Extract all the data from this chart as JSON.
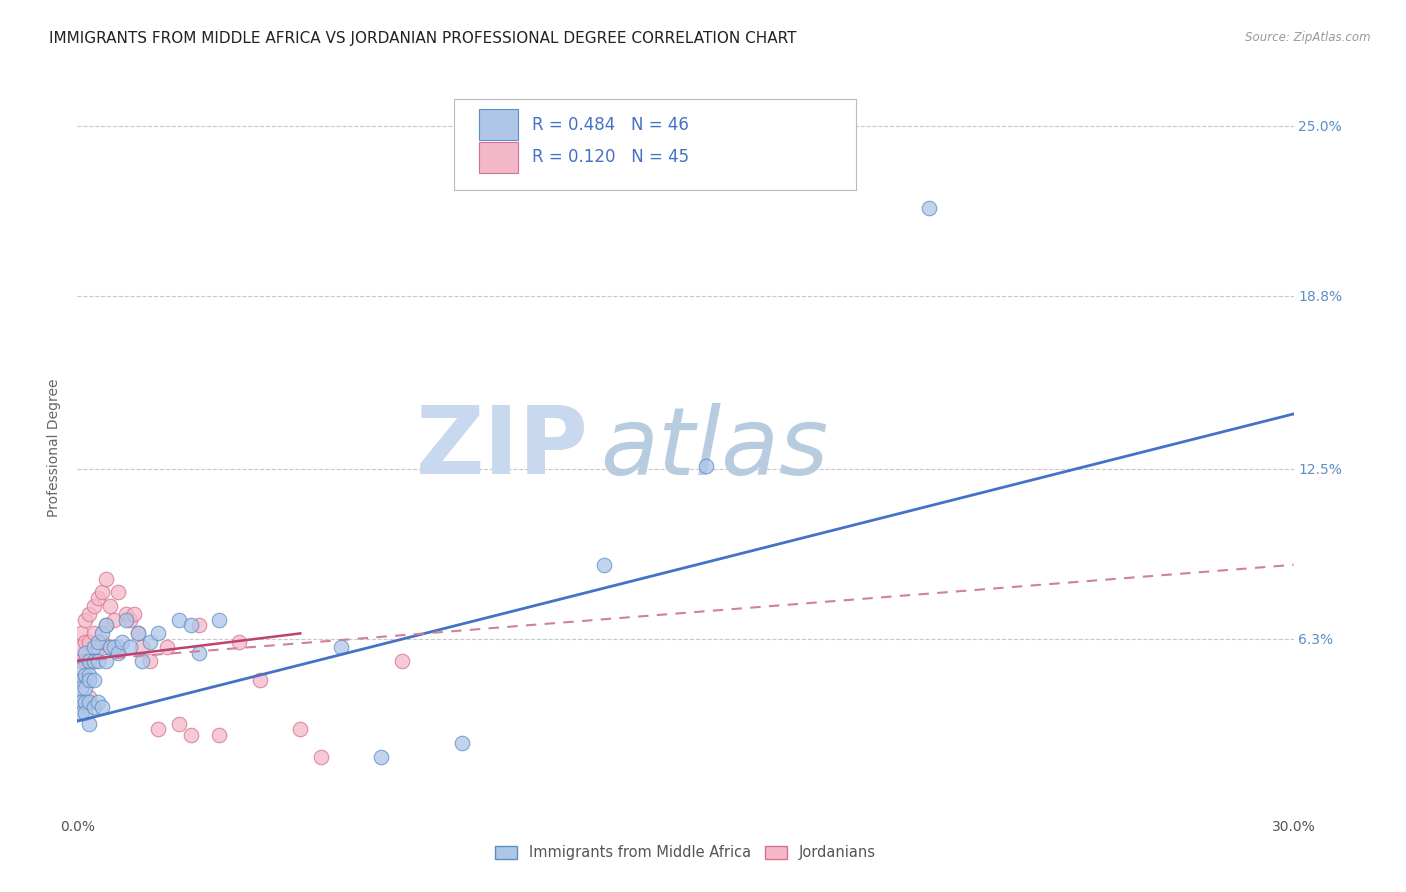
{
  "title": "IMMIGRANTS FROM MIDDLE AFRICA VS JORDANIAN PROFESSIONAL DEGREE CORRELATION CHART",
  "source": "Source: ZipAtlas.com",
  "ylabel": "Professional Degree",
  "xlim": [
    0.0,
    0.3
  ],
  "ylim": [
    0.0,
    0.265
  ],
  "ytick_labels_right": [
    "6.3%",
    "12.5%",
    "18.8%",
    "25.0%"
  ],
  "ytick_vals_right": [
    0.063,
    0.125,
    0.188,
    0.25
  ],
  "series1_label": "Immigrants from Middle Africa",
  "series1_R": "0.484",
  "series1_N": "46",
  "series1_color": "#aec6e8",
  "series1_edge_color": "#5b8ec4",
  "series2_label": "Jordanians",
  "series2_R": "0.120",
  "series2_N": "45",
  "series2_color": "#f4b8c8",
  "series2_edge_color": "#d47090",
  "trend1_color": "#4472c4",
  "trend2_solid_color": "#c04070",
  "trend2_dash_color": "#d08098",
  "background_color": "#ffffff",
  "grid_color": "#c8c8c8",
  "watermark_ZIP": "ZIP",
  "watermark_atlas": "atlas",
  "watermark_color_ZIP": "#c8d8ee",
  "watermark_color_atlas": "#b8cce0",
  "title_fontsize": 11,
  "axis_label_fontsize": 10,
  "tick_fontsize": 10,
  "series1_x": [
    0.001,
    0.001,
    0.001,
    0.001,
    0.001,
    0.002,
    0.002,
    0.002,
    0.002,
    0.002,
    0.003,
    0.003,
    0.003,
    0.003,
    0.003,
    0.004,
    0.004,
    0.004,
    0.004,
    0.005,
    0.005,
    0.005,
    0.006,
    0.006,
    0.007,
    0.007,
    0.008,
    0.009,
    0.01,
    0.011,
    0.012,
    0.013,
    0.015,
    0.016,
    0.018,
    0.02,
    0.025,
    0.028,
    0.03,
    0.035,
    0.065,
    0.075,
    0.095,
    0.13,
    0.155,
    0.21
  ],
  "series1_y": [
    0.052,
    0.048,
    0.045,
    0.04,
    0.036,
    0.058,
    0.05,
    0.045,
    0.04,
    0.036,
    0.055,
    0.05,
    0.048,
    0.04,
    0.032,
    0.06,
    0.055,
    0.048,
    0.038,
    0.062,
    0.055,
    0.04,
    0.065,
    0.038,
    0.068,
    0.055,
    0.06,
    0.06,
    0.058,
    0.062,
    0.07,
    0.06,
    0.065,
    0.055,
    0.062,
    0.065,
    0.07,
    0.068,
    0.058,
    0.07,
    0.06,
    0.02,
    0.025,
    0.09,
    0.126,
    0.22
  ],
  "series2_x": [
    0.001,
    0.001,
    0.001,
    0.001,
    0.001,
    0.002,
    0.002,
    0.002,
    0.002,
    0.002,
    0.003,
    0.003,
    0.003,
    0.003,
    0.004,
    0.004,
    0.004,
    0.005,
    0.005,
    0.006,
    0.006,
    0.007,
    0.007,
    0.008,
    0.008,
    0.009,
    0.01,
    0.01,
    0.012,
    0.013,
    0.014,
    0.015,
    0.016,
    0.018,
    0.02,
    0.022,
    0.025,
    0.028,
    0.03,
    0.035,
    0.04,
    0.045,
    0.055,
    0.06,
    0.08
  ],
  "series2_y": [
    0.065,
    0.06,
    0.055,
    0.048,
    0.04,
    0.07,
    0.062,
    0.055,
    0.048,
    0.038,
    0.072,
    0.062,
    0.055,
    0.042,
    0.075,
    0.065,
    0.055,
    0.078,
    0.06,
    0.08,
    0.062,
    0.085,
    0.068,
    0.075,
    0.06,
    0.07,
    0.08,
    0.06,
    0.072,
    0.07,
    0.072,
    0.065,
    0.06,
    0.055,
    0.03,
    0.06,
    0.032,
    0.028,
    0.068,
    0.028,
    0.062,
    0.048,
    0.03,
    0.02,
    0.055
  ],
  "trend1_x0": 0.0,
  "trend1_y0": 0.033,
  "trend1_x1": 0.3,
  "trend1_y1": 0.145,
  "trend2_solid_x0": 0.0,
  "trend2_solid_y0": 0.055,
  "trend2_solid_x1": 0.055,
  "trend2_solid_y1": 0.065,
  "trend2_dash_x0": 0.0,
  "trend2_dash_y0": 0.055,
  "trend2_dash_x1": 0.3,
  "trend2_dash_y1": 0.09
}
